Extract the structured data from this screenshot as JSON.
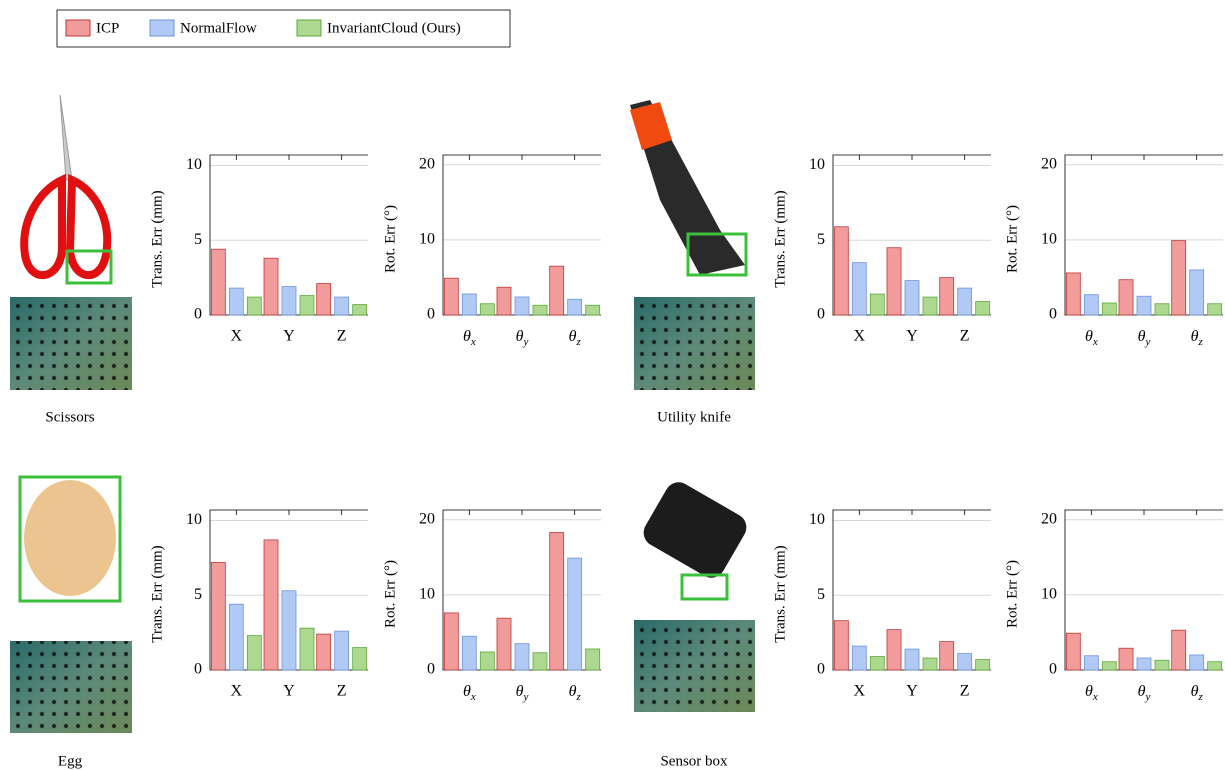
{
  "legend": [
    {
      "name": "ICP",
      "color": "#f19b9b"
    },
    {
      "name": "NormalFlow",
      "color": "#b0c9f5"
    },
    {
      "name": "InvariantCloud (Ours)",
      "color": "#acd98f"
    }
  ],
  "objects": [
    "Scissors",
    "Utility knife",
    "Egg",
    "Sensor box"
  ],
  "chart_data": [
    {
      "type": "bar",
      "ylabel": "Trans. Err (mm)",
      "categories": [
        "X",
        "Y",
        "Z"
      ],
      "ylim": [
        0,
        10.7
      ],
      "yticks": [
        0,
        5,
        10
      ],
      "grid": true,
      "series": [
        {
          "values": [
            4.4,
            3.8,
            2.1
          ]
        },
        {
          "values": [
            1.8,
            1.9,
            1.2
          ]
        },
        {
          "values": [
            1.2,
            1.3,
            0.7
          ]
        }
      ]
    },
    {
      "type": "bar",
      "ylabel": "Rot. Err (°)",
      "categories": [
        "θx",
        "θy",
        "θz"
      ],
      "ylim": [
        0,
        21.3
      ],
      "yticks": [
        0,
        10,
        20
      ],
      "grid": true,
      "series": [
        {
          "values": [
            4.9,
            3.7,
            6.5
          ]
        },
        {
          "values": [
            2.8,
            2.4,
            2.1
          ]
        },
        {
          "values": [
            1.5,
            1.3,
            1.3
          ]
        }
      ]
    },
    {
      "type": "bar",
      "ylabel": "Trans. Err (mm)",
      "categories": [
        "X",
        "Y",
        "Z"
      ],
      "ylim": [
        0,
        10.7
      ],
      "yticks": [
        0,
        5,
        10
      ],
      "grid": true,
      "series": [
        {
          "values": [
            5.9,
            4.5,
            2.5
          ]
        },
        {
          "values": [
            3.5,
            2.3,
            1.8
          ]
        },
        {
          "values": [
            1.4,
            1.2,
            0.9
          ]
        }
      ]
    },
    {
      "type": "bar",
      "ylabel": "Rot. Err (°)",
      "categories": [
        "θx",
        "θy",
        "θz"
      ],
      "ylim": [
        0,
        21.3
      ],
      "yticks": [
        0,
        10,
        20
      ],
      "grid": true,
      "series": [
        {
          "values": [
            5.6,
            4.7,
            9.9
          ]
        },
        {
          "values": [
            2.7,
            2.5,
            6.0
          ]
        },
        {
          "values": [
            1.6,
            1.5,
            1.5
          ]
        }
      ]
    },
    {
      "type": "bar",
      "ylabel": "Trans. Err (mm)",
      "categories": [
        "X",
        "Y",
        "Z"
      ],
      "ylim": [
        0,
        10.7
      ],
      "yticks": [
        0,
        5,
        10
      ],
      "grid": true,
      "series": [
        {
          "values": [
            7.2,
            8.7,
            2.4
          ]
        },
        {
          "values": [
            4.4,
            5.3,
            2.6
          ]
        },
        {
          "values": [
            2.3,
            2.8,
            1.5
          ]
        }
      ]
    },
    {
      "type": "bar",
      "ylabel": "Rot. Err (°)",
      "categories": [
        "θx",
        "θy",
        "θz"
      ],
      "ylim": [
        0,
        21.3
      ],
      "yticks": [
        0,
        10,
        20
      ],
      "grid": true,
      "series": [
        {
          "values": [
            7.6,
            6.9,
            18.3
          ]
        },
        {
          "values": [
            4.5,
            3.5,
            14.9
          ]
        },
        {
          "values": [
            2.4,
            2.3,
            2.8
          ]
        }
      ]
    },
    {
      "type": "bar",
      "ylabel": "Trans. Err (mm)",
      "categories": [
        "X",
        "Y",
        "Z"
      ],
      "ylim": [
        0,
        10.7
      ],
      "yticks": [
        0,
        5,
        10
      ],
      "grid": true,
      "series": [
        {
          "values": [
            3.3,
            2.7,
            1.9
          ]
        },
        {
          "values": [
            1.6,
            1.4,
            1.1
          ]
        },
        {
          "values": [
            0.9,
            0.8,
            0.7
          ]
        }
      ]
    },
    {
      "type": "bar",
      "ylabel": "Rot. Err (°)",
      "categories": [
        "θx",
        "θy",
        "θz"
      ],
      "ylim": [
        0,
        21.3
      ],
      "yticks": [
        0,
        10,
        20
      ],
      "grid": true,
      "series": [
        {
          "values": [
            4.9,
            2.9,
            5.3
          ]
        },
        {
          "values": [
            1.9,
            1.6,
            2.0
          ]
        },
        {
          "values": [
            1.1,
            1.3,
            1.1
          ]
        }
      ]
    }
  ]
}
